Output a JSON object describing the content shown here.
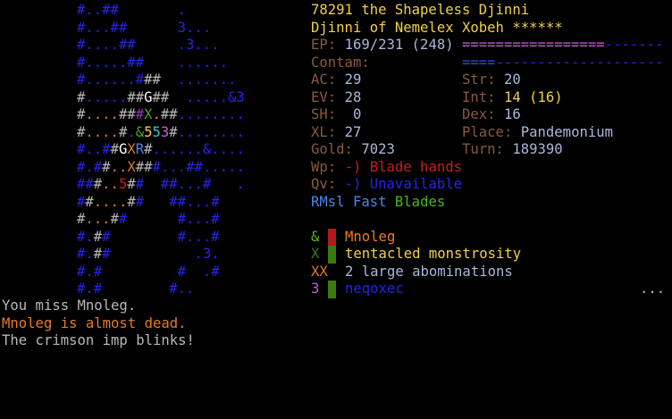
{
  "colors": {
    "b": "#2424e8",
    "g": "#b8b8b8",
    "o": "#e07828",
    "w": "#ffffff",
    "p": "#8a3ab8",
    "G": "#48a818",
    "y": "#f0d040",
    "c": "#30c8c0",
    "m": "#d060e0",
    "r": "#c81e1e",
    "l": "#4888e8",
    "dg": "#3a7a10"
  },
  "map": [
    [
      [
        "#..##",
        "b"
      ],
      [
        "       .",
        "b"
      ]
    ],
    [
      [
        "#...##",
        "b"
      ],
      [
        "      3...",
        "b"
      ]
    ],
    [
      [
        "#....##",
        "b"
      ],
      [
        "     .3...",
        "b"
      ]
    ],
    [
      [
        "#.....##",
        "b"
      ],
      [
        "    ......",
        "b"
      ]
    ],
    [
      [
        "#......#",
        "b"
      ],
      [
        "##",
        "g"
      ],
      [
        "  .......",
        "b"
      ]
    ],
    [
      [
        "#",
        "g"
      ],
      [
        ".....",
        "b"
      ],
      [
        "##",
        "g"
      ],
      [
        "G",
        "w"
      ],
      [
        "##",
        "g"
      ],
      [
        "  .....&3",
        "b"
      ]
    ],
    [
      [
        "#",
        "g"
      ],
      [
        "....",
        "o"
      ],
      [
        "##",
        "g"
      ],
      [
        "#",
        "p"
      ],
      [
        "X",
        "G"
      ],
      [
        ".",
        "o"
      ],
      [
        "##",
        "g"
      ],
      [
        "........",
        "b"
      ]
    ],
    [
      [
        "#",
        "g"
      ],
      [
        "....",
        "o"
      ],
      [
        "#",
        "g"
      ],
      [
        ".",
        "b"
      ],
      [
        "&",
        "G"
      ],
      [
        "5",
        "y"
      ],
      [
        "5",
        "c"
      ],
      [
        "3",
        "m"
      ],
      [
        "#",
        "g"
      ],
      [
        "........",
        "b"
      ]
    ],
    [
      [
        "#..#",
        "b"
      ],
      [
        "#",
        "g"
      ],
      [
        "G",
        "w"
      ],
      [
        "X",
        "o"
      ],
      [
        "R",
        "l"
      ],
      [
        "#",
        "g"
      ],
      [
        "......&....",
        "b"
      ]
    ],
    [
      [
        "#.#",
        "b"
      ],
      [
        "#",
        "g"
      ],
      [
        "..",
        "o"
      ],
      [
        "X",
        "o"
      ],
      [
        "##",
        "g"
      ],
      [
        "#...##.....",
        "b"
      ]
    ],
    [
      [
        "##",
        "b"
      ],
      [
        "#",
        "g"
      ],
      [
        "..",
        "o"
      ],
      [
        "5",
        "r"
      ],
      [
        "#",
        "g"
      ],
      [
        "#",
        "b"
      ],
      [
        "  ##...#   .",
        "b"
      ]
    ],
    [
      [
        "#",
        "b"
      ],
      [
        "#",
        "g"
      ],
      [
        "....",
        "o"
      ],
      [
        "#",
        "g"
      ],
      [
        "#",
        "b"
      ],
      [
        "   ##...#",
        "b"
      ]
    ],
    [
      [
        "#",
        "g"
      ],
      [
        "...",
        "o"
      ],
      [
        "#",
        "g"
      ],
      [
        "#",
        "b"
      ],
      [
        "      #...#",
        "b"
      ]
    ],
    [
      [
        "#.",
        "b"
      ],
      [
        "#",
        "g"
      ],
      [
        "#",
        "b"
      ],
      [
        "        #...#",
        "b"
      ]
    ],
    [
      [
        "#.",
        "b"
      ],
      [
        "#",
        "g"
      ],
      [
        "#",
        "b"
      ],
      [
        "          .3.",
        "b"
      ]
    ],
    [
      [
        "#.#",
        "b"
      ],
      [
        "         #  .#",
        "b"
      ]
    ],
    [
      [
        "#.#",
        "b"
      ],
      [
        "        #..",
        "b"
      ]
    ]
  ],
  "header": {
    "title": "78291 the Shapeless Djinni",
    "subtitle": "Djinni of Nemelex Xobeh ******"
  },
  "stats": {
    "ep_label": "EP:",
    "ep_value": "169/231 (248)",
    "ep_fraction": 0.73,
    "ep_bar_full": "=================",
    "ep_bar_empty": "-------",
    "contam_label": "Contam:",
    "contam_bar_full": "====",
    "contam_bar_empty": "--------------------",
    "ac_label": "AC:",
    "ac": "29",
    "ev_label": "EV:",
    "ev": "28",
    "sh_label": "SH:",
    "sh": " 0",
    "xl_label": "XL:",
    "xl": "27",
    "gold_label": "Gold:",
    "gold": "7023",
    "str_label": "Str:",
    "str": "20",
    "int_label": "Int:",
    "int": "14 (16)",
    "dex_label": "Dex:",
    "dex": "16",
    "place_label": "Place:",
    "place": "Pandemonium",
    "turn_label": "Turn:",
    "turn": "189390",
    "wp_label": "Wp:",
    "wp": "-) Blade hands",
    "qv_label": "Qv:",
    "qv": "-) Unavailable",
    "status": [
      "RMsl",
      "Fast",
      "Blades"
    ]
  },
  "monsters": [
    {
      "glyph": "&",
      "name": "Mnoleg",
      "glyph_color": "#58b820",
      "bar_color": "#b01a1a",
      "name_color": "#e87a28"
    },
    {
      "glyph": "X",
      "name": "tentacled monstrosity",
      "glyph_color": "#3a7a10",
      "bar_color": "#3a7a10",
      "name_color": "#f0d048"
    },
    {
      "glyph": "XX",
      "name": "2 large abominations",
      "glyph_color": "#e07828",
      "bar_color": "",
      "name_color": "#a8b8d8"
    },
    {
      "glyph": "3",
      "name": "neqoxec",
      "glyph_color": "#c060e0",
      "bar_color": "#3a7a10",
      "name_color": "#2424e8"
    }
  ],
  "more": "...",
  "messages": [
    {
      "text": "You miss Mnoleg.",
      "color": "#b8b8b8"
    },
    {
      "text": "Mnoleg is almost dead.",
      "color": "#e87a28"
    },
    {
      "text": "The crimson imp blinks!",
      "color": "#b8b8b8"
    }
  ]
}
